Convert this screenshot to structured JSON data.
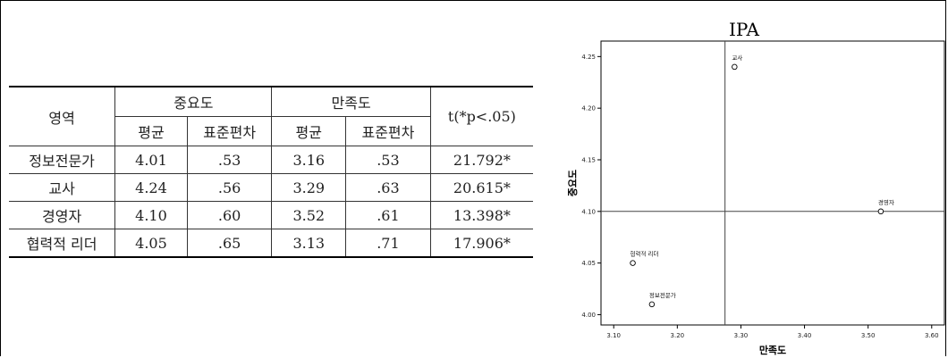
{
  "table": {
    "header": {
      "area": "영역",
      "importance": "중요도",
      "satisfaction": "만족도",
      "t": "t(*p<.05)",
      "mean": "평균",
      "sd": "표준편차"
    },
    "rows": [
      {
        "area": "정보전문가",
        "imp_mean": "4.01",
        "imp_sd": ".53",
        "sat_mean": "3.16",
        "sat_sd": ".53",
        "t": "21.792*"
      },
      {
        "area": "교사",
        "imp_mean": "4.24",
        "imp_sd": ".56",
        "sat_mean": "3.29",
        "sat_sd": ".63",
        "t": "20.615*"
      },
      {
        "area": "경영자",
        "imp_mean": "4.10",
        "imp_sd": ".60",
        "sat_mean": "3.52",
        "sat_sd": ".61",
        "t": "13.398*"
      },
      {
        "area": "협력적 리더",
        "imp_mean": "4.05",
        "imp_sd": ".65",
        "sat_mean": "3.13",
        "sat_sd": ".71",
        "t": "17.906*"
      }
    ]
  },
  "chart_data": {
    "type": "scatter",
    "title": "IPA",
    "xlabel": "만족도",
    "ylabel": "중요도",
    "xlim": [
      3.08,
      3.62
    ],
    "ylim": [
      3.99,
      4.265
    ],
    "xticks": [
      "3.10",
      "3.20",
      "3.30",
      "3.40",
      "3.50",
      "3.60"
    ],
    "yticks": [
      "4.00",
      "4.05",
      "4.10",
      "4.15",
      "4.20",
      "4.25"
    ],
    "ref_x": 3.275,
    "ref_y": 4.1,
    "grid": false,
    "points": [
      {
        "label": "교사",
        "x": 3.29,
        "y": 4.24
      },
      {
        "label": "경영자",
        "x": 3.52,
        "y": 4.1
      },
      {
        "label": "협력적 리더",
        "x": 3.13,
        "y": 4.05
      },
      {
        "label": "정보전문가",
        "x": 3.16,
        "y": 4.01
      }
    ]
  }
}
